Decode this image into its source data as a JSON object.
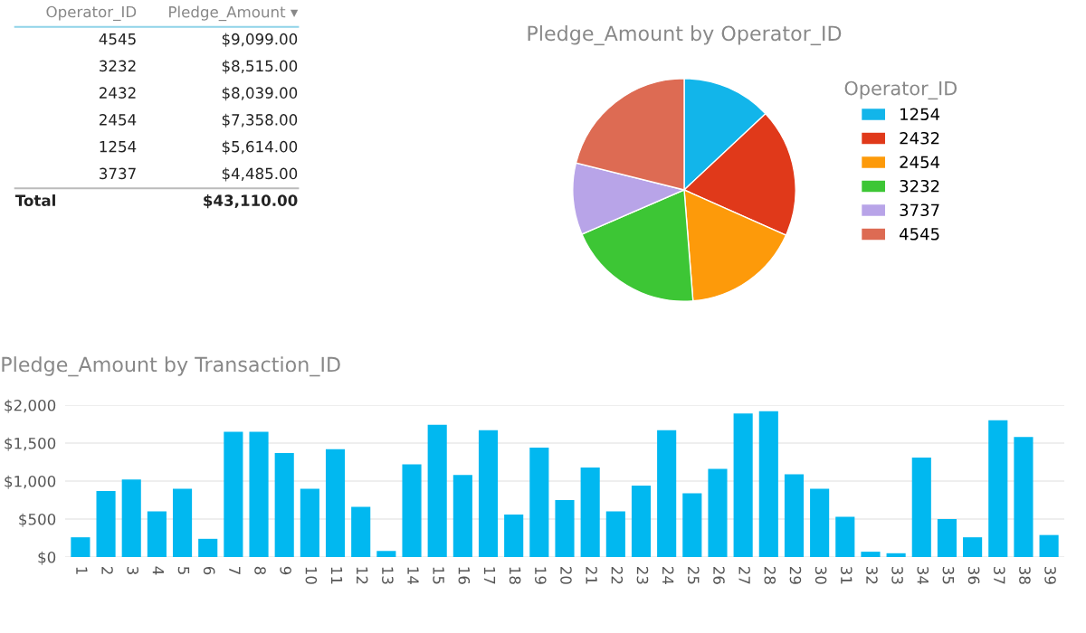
{
  "chart_data": [
    {
      "type": "other",
      "annotations": [
        "Operator_ID",
        "Pledge_Amount ▾",
        "4545",
        "$9,099.00",
        "3232",
        "$8,515.00",
        "2432",
        "$8,039.00",
        "2454",
        "$7,358.00",
        "1254",
        "$5,614.00",
        "3737",
        "$4,485.00",
        "Total",
        "$43,110.00"
      ]
    },
    {
      "type": "pie",
      "title": "Pledge_Amount by Operator_ID",
      "legend_title": "Operator_ID",
      "legend": "right",
      "categories": [
        "1254",
        "2432",
        "2454",
        "3232",
        "3737",
        "4545"
      ],
      "values": [
        13.02,
        18.65,
        17.07,
        19.75,
        10.4,
        21.11
      ],
      "colors": [
        "#12b5ea",
        "#e0391a",
        "#fd9a0a",
        "#3dc635",
        "#b8a4e8",
        "#dd6b53"
      ]
    },
    {
      "type": "bar",
      "title": "Pledge_Amount by Transaction_ID",
      "grid": "y",
      "color": "#01b8f0",
      "ylim": [
        0,
        2000
      ],
      "yticks": [
        {
          "value": 0,
          "label": "$0"
        },
        {
          "value": 500,
          "label": "$500"
        },
        {
          "value": 1000,
          "label": "$1,000"
        },
        {
          "value": 1500,
          "label": "$1,500"
        },
        {
          "value": 2000,
          "label": "$2,000"
        }
      ],
      "categories": [
        "1",
        "2",
        "3",
        "4",
        "5",
        "6",
        "7",
        "8",
        "9",
        "10",
        "11",
        "12",
        "13",
        "14",
        "15",
        "16",
        "17",
        "18",
        "19",
        "20",
        "21",
        "22",
        "23",
        "24",
        "25",
        "26",
        "27",
        "28",
        "29",
        "30",
        "31",
        "32",
        "33",
        "34",
        "35",
        "36",
        "37",
        "38",
        "39"
      ],
      "values": [
        260,
        870,
        1020,
        600,
        900,
        240,
        1650,
        1650,
        1370,
        900,
        1420,
        660,
        80,
        1220,
        1740,
        1080,
        1670,
        560,
        1440,
        750,
        1180,
        600,
        940,
        1670,
        840,
        1160,
        1890,
        1920,
        1090,
        900,
        530,
        70,
        50,
        1310,
        500,
        260,
        1800,
        1580,
        290
      ]
    }
  ]
}
